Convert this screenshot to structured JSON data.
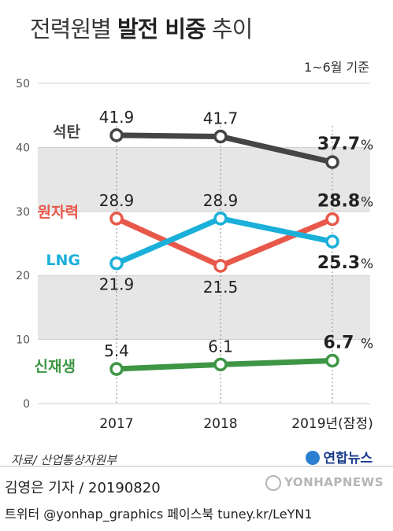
{
  "header": {
    "title_prefix": "전력원별",
    "title_bold": "발전 비중",
    "title_suffix": "추이",
    "note": "1~6월 기준"
  },
  "chart_data": {
    "type": "line",
    "categories": [
      "2017",
      "2018",
      "2019년(잠정)"
    ],
    "ylim": [
      0,
      50
    ],
    "yticks": [
      0,
      10,
      20,
      30,
      40,
      50
    ],
    "value_unit": "%",
    "grid": false,
    "series": [
      {
        "name": "석탄",
        "values": [
          41.9,
          41.7,
          37.7
        ],
        "labels": [
          "41.9",
          "41.7",
          "37.7"
        ],
        "color": "#454545",
        "label_pos": "above"
      },
      {
        "name": "원자력",
        "values": [
          28.9,
          21.5,
          28.8
        ],
        "labels": [
          "28.9",
          "21.5",
          "28.8"
        ],
        "color": "#e8584a",
        "label_pos": [
          "above",
          "below",
          "above"
        ]
      },
      {
        "name": "LNG",
        "values": [
          21.9,
          28.9,
          25.3
        ],
        "labels": [
          "21.9",
          "28.9",
          "25.3"
        ],
        "color": "#1ab0d9",
        "label_pos": [
          "below",
          "above",
          "below"
        ]
      },
      {
        "name": "신재생",
        "values": [
          5.4,
          6.1,
          6.7
        ],
        "labels": [
          "5.4",
          "6.1",
          "6.7"
        ],
        "color": "#3e9645",
        "label_pos": "above"
      }
    ]
  },
  "footer": {
    "source": "자료/ 산업통상자원부",
    "brand": "연합뉴스",
    "reporter": "김영은 기자 / 20190820",
    "social": "트위터 @yonhap_graphics  페이스북 tuney.kr/LeYN1",
    "watermark": "YONHAPNEWS"
  }
}
